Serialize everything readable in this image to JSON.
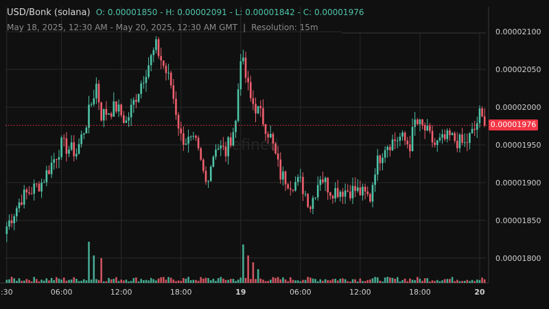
{
  "header": {
    "pair": "USD/Bonk (solana)",
    "ohlc": "O: 0.00001850 - H: 0.00002091 - L: 0.00001842 - C: 0.00001976",
    "range": "May 18, 2025, 12:30 AM - May 20, 2025, 12:30 AM GMT",
    "separator": "|",
    "resolution": "Resolution: 15m"
  },
  "last_price_label": "0.00001976",
  "watermark": "defined",
  "colors": {
    "up": "#4fc4a8",
    "down": "#f0606e",
    "bg": "#101010",
    "grid": "#2a2a2a",
    "price_tag": "#f23645"
  },
  "chart_data": {
    "type": "candlestick",
    "interval": "15m",
    "yticks": [
      "0.00001800",
      "0.00001850",
      "0.00001900",
      "0.00001950",
      "0.00002000",
      "0.00002050",
      "0.00002100"
    ],
    "ytick_values": [
      1.8e-05,
      1.85e-05,
      1.9e-05,
      1.95e-05,
      2e-05,
      2.05e-05,
      2.1e-05
    ],
    "ylim": [
      1.767e-05,
      2.133e-05
    ],
    "xticks": [
      ":30",
      "06:00",
      "12:00",
      "18:00",
      "19",
      "06:00",
      "12:00",
      "18:00",
      "20"
    ],
    "xtick_bars": [
      0,
      22,
      46,
      70,
      94,
      118,
      142,
      166,
      190
    ],
    "last_price": 1.976e-05,
    "close_path": [
      [
        0,
        1.842e-05
      ],
      [
        6,
        1.88e-05
      ],
      [
        14,
        1.9e-05
      ],
      [
        22,
        1.95e-05
      ],
      [
        28,
        1.94e-05
      ],
      [
        32,
        1.98e-05
      ],
      [
        36,
        2.03e-05
      ],
      [
        38,
        1.99e-05
      ],
      [
        44,
        2e-05
      ],
      [
        48,
        1.98e-05
      ],
      [
        56,
        2.05e-05
      ],
      [
        60,
        2.08e-05
      ],
      [
        66,
        2.03e-05
      ],
      [
        70,
        1.96e-05
      ],
      [
        76,
        1.95e-05
      ],
      [
        80,
        1.9e-05
      ],
      [
        84,
        1.95e-05
      ],
      [
        88,
        1.94e-05
      ],
      [
        92,
        1.98e-05
      ],
      [
        94,
        2.07e-05
      ],
      [
        98,
        2.01e-05
      ],
      [
        102,
        1.99e-05
      ],
      [
        106,
        1.96e-05
      ],
      [
        110,
        1.91e-05
      ],
      [
        114,
        1.9e-05
      ],
      [
        118,
        1.9e-05
      ],
      [
        122,
        1.87e-05
      ],
      [
        126,
        1.91e-05
      ],
      [
        130,
        1.89e-05
      ],
      [
        140,
        1.89e-05
      ],
      [
        146,
        1.88e-05
      ],
      [
        148,
        1.92e-05
      ],
      [
        152,
        1.95e-05
      ],
      [
        158,
        1.96e-05
      ],
      [
        162,
        1.95e-05
      ],
      [
        164,
        1.98e-05
      ],
      [
        168,
        1.97e-05
      ],
      [
        172,
        1.95e-05
      ],
      [
        178,
        1.96e-05
      ],
      [
        184,
        1.95e-05
      ],
      [
        188,
        1.97e-05
      ],
      [
        190,
        1.99e-05
      ],
      [
        192,
        1.976e-05
      ]
    ],
    "volume_spikes": [
      [
        33,
        30
      ],
      [
        35,
        20
      ],
      [
        38,
        18
      ],
      [
        95,
        28
      ],
      [
        97,
        20
      ],
      [
        99,
        15
      ],
      [
        101,
        10
      ]
    ]
  }
}
